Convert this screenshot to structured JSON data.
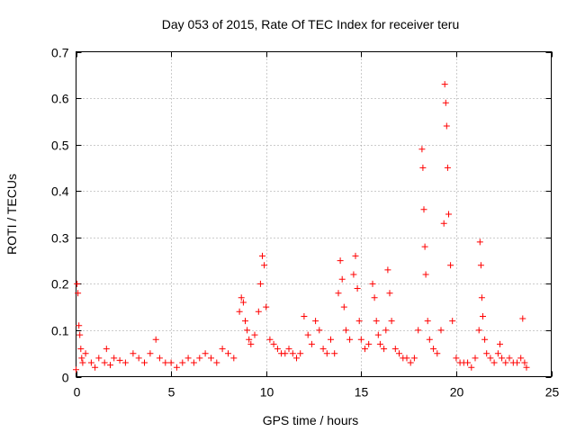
{
  "chart_data": {
    "type": "scatter",
    "title": "Day 053 of 2015, Rate Of TEC Index for receiver teru",
    "xlabel": "GPS time / hours",
    "ylabel": "ROTI / TECUs",
    "xlim": [
      0,
      25
    ],
    "ylim": [
      0,
      0.7
    ],
    "x_ticks": [
      "0",
      "5",
      "10",
      "15",
      "20",
      "25"
    ],
    "y_ticks": [
      "0",
      "0.1",
      "0.2",
      "0.3",
      "0.4",
      "0.5",
      "0.6",
      "0.7"
    ],
    "grid": true,
    "marker": "+",
    "colors": {
      "series": "#ff0000"
    },
    "series": [
      {
        "x": [
          0.0,
          0.05,
          0.1,
          0.15,
          0.2,
          0.25,
          0.3,
          0.35,
          0.5,
          0.8,
          1.0,
          1.2,
          1.5,
          1.6,
          1.8,
          2.0,
          2.3,
          2.6,
          3.0,
          3.3,
          3.6,
          3.9,
          4.2,
          4.4,
          4.7,
          5.0,
          5.3,
          5.6,
          5.9,
          6.2,
          6.5,
          6.8,
          7.1,
          7.4,
          7.7,
          8.0,
          8.3,
          8.6,
          8.7,
          8.8,
          8.9,
          9.0,
          9.1,
          9.2,
          9.4,
          9.6,
          9.7,
          9.8,
          9.9,
          10.0,
          10.2,
          10.4,
          10.6,
          10.8,
          11.0,
          11.2,
          11.4,
          11.6,
          11.8,
          12.0,
          12.2,
          12.4,
          12.6,
          12.8,
          13.0,
          13.2,
          13.4,
          13.6,
          13.8,
          13.9,
          14.0,
          14.1,
          14.2,
          14.4,
          14.6,
          14.7,
          14.8,
          14.9,
          15.0,
          15.2,
          15.4,
          15.6,
          15.7,
          15.8,
          15.9,
          16.0,
          16.2,
          16.3,
          16.4,
          16.5,
          16.6,
          16.8,
          17.0,
          17.2,
          17.4,
          17.6,
          17.8,
          18.0,
          18.2,
          18.25,
          18.3,
          18.35,
          18.4,
          18.5,
          18.6,
          18.8,
          19.0,
          19.2,
          19.35,
          19.4,
          19.45,
          19.5,
          19.55,
          19.6,
          19.7,
          19.8,
          20.0,
          20.2,
          20.4,
          20.6,
          20.8,
          21.0,
          21.2,
          21.25,
          21.3,
          21.35,
          21.4,
          21.5,
          21.6,
          21.8,
          22.0,
          22.2,
          22.3,
          22.4,
          22.6,
          22.8,
          23.0,
          23.2,
          23.4,
          23.5,
          23.6,
          23.7
        ],
        "y": [
          0.015,
          0.2,
          0.18,
          0.11,
          0.09,
          0.06,
          0.04,
          0.03,
          0.05,
          0.03,
          0.02,
          0.04,
          0.03,
          0.06,
          0.025,
          0.04,
          0.035,
          0.03,
          0.05,
          0.04,
          0.03,
          0.05,
          0.08,
          0.04,
          0.03,
          0.03,
          0.02,
          0.03,
          0.04,
          0.03,
          0.04,
          0.05,
          0.04,
          0.03,
          0.06,
          0.05,
          0.04,
          0.14,
          0.17,
          0.16,
          0.12,
          0.1,
          0.08,
          0.07,
          0.09,
          0.14,
          0.2,
          0.26,
          0.24,
          0.15,
          0.08,
          0.07,
          0.06,
          0.05,
          0.05,
          0.06,
          0.05,
          0.04,
          0.05,
          0.13,
          0.09,
          0.07,
          0.12,
          0.1,
          0.06,
          0.05,
          0.08,
          0.05,
          0.18,
          0.25,
          0.21,
          0.15,
          0.1,
          0.08,
          0.22,
          0.26,
          0.19,
          0.12,
          0.08,
          0.06,
          0.07,
          0.2,
          0.17,
          0.12,
          0.09,
          0.07,
          0.06,
          0.1,
          0.23,
          0.18,
          0.12,
          0.06,
          0.05,
          0.04,
          0.04,
          0.03,
          0.04,
          0.1,
          0.49,
          0.45,
          0.36,
          0.28,
          0.22,
          0.12,
          0.08,
          0.06,
          0.05,
          0.1,
          0.33,
          0.63,
          0.59,
          0.54,
          0.45,
          0.35,
          0.24,
          0.12,
          0.04,
          0.03,
          0.03,
          0.03,
          0.02,
          0.04,
          0.1,
          0.29,
          0.24,
          0.17,
          0.13,
          0.08,
          0.05,
          0.04,
          0.03,
          0.05,
          0.07,
          0.04,
          0.03,
          0.04,
          0.03,
          0.03,
          0.04,
          0.125,
          0.03,
          0.02
        ]
      }
    ]
  }
}
